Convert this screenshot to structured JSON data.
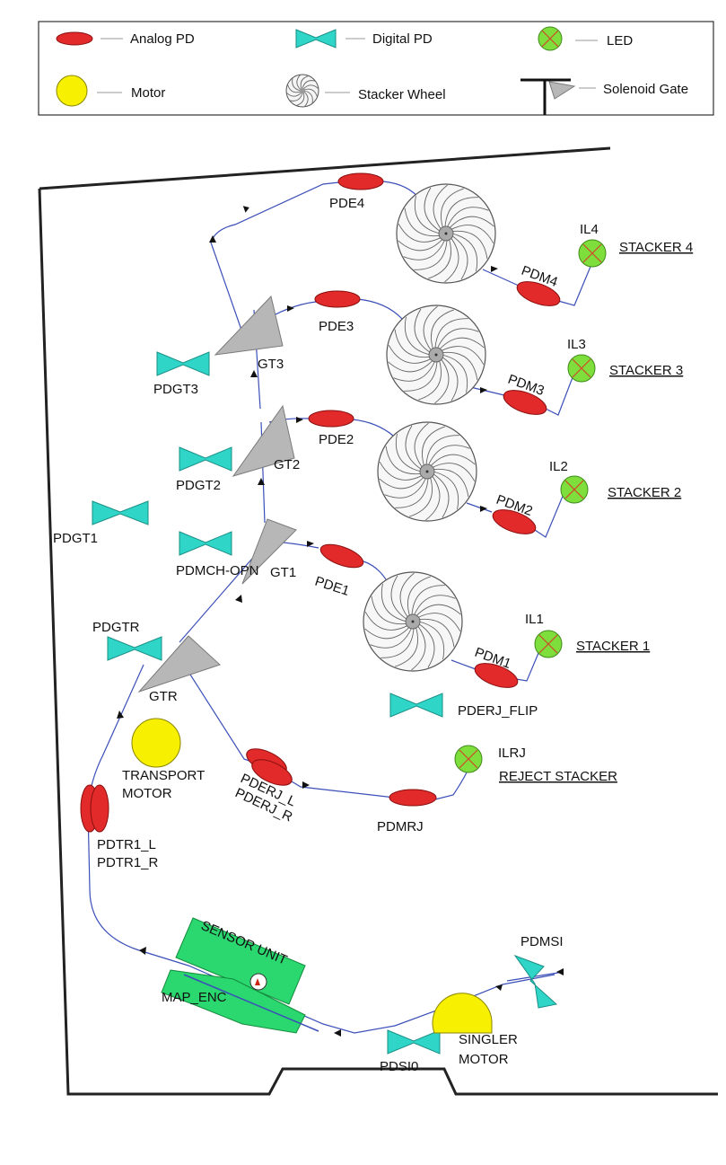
{
  "legend": {
    "analog_pd": "Analog PD",
    "digital_pd": "Digital PD",
    "led": "LED",
    "motor": "Motor",
    "stacker_wheel": "Stacker Wheel",
    "solenoid_gate": "Solenoid Gate"
  },
  "analog_sensors": [
    "PDE4",
    "PDE3",
    "PDE2",
    "PDE1",
    "PDM4",
    "PDM3",
    "PDM2",
    "PDM1",
    "PDMRJ"
  ],
  "pderj": [
    "PDERJ_L",
    "PDERJ_R"
  ],
  "pdtr1": [
    "PDTR1_L",
    "PDTR1_R"
  ],
  "digital_sensors": [
    "PDGT3",
    "PDGT2",
    "PDGT1",
    "PDMCH-OPN",
    "PDGTR",
    "PDERJ_FLIP",
    "PDMSI",
    "PDSI0"
  ],
  "gates": [
    "GT3",
    "GT2",
    "GT1",
    "GTR"
  ],
  "leds": [
    "IL4",
    "IL3",
    "IL2",
    "IL1",
    "ILRJ"
  ],
  "stackers": [
    "STACKER 4",
    "STACKER 3",
    "STACKER 2",
    "STACKER 1",
    "REJECT STACKER"
  ],
  "motors": {
    "transport": [
      "TRANSPORT",
      "MOTOR"
    ],
    "singler": [
      "SINGLER",
      "MOTOR"
    ]
  },
  "sensor_unit": "SENSOR UNIT",
  "map_enc": "MAP_ENC"
}
